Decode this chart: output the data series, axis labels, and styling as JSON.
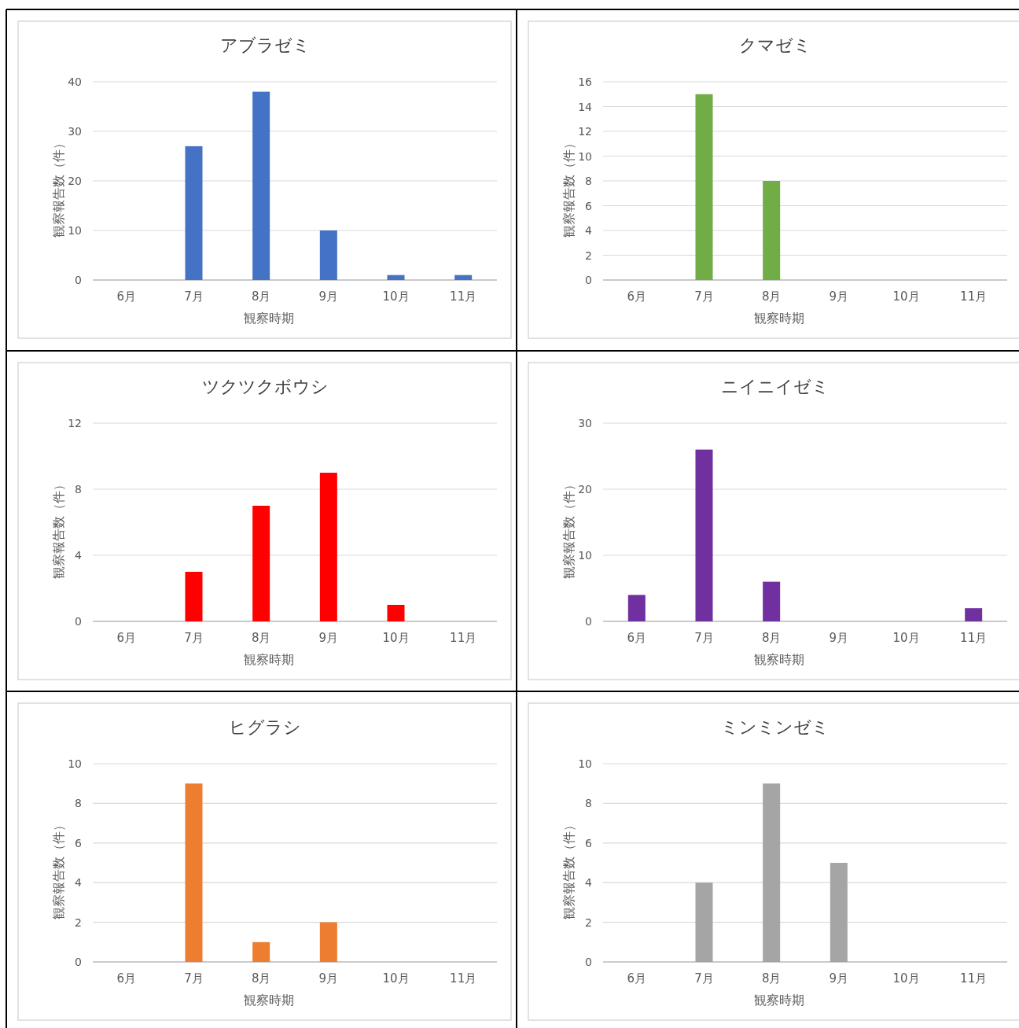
{
  "chart_data": [
    {
      "type": "bar",
      "title": "アブラゼミ",
      "xlabel": "観察時期",
      "ylabel": "観察報告数（件）",
      "categories": [
        "6月",
        "7月",
        "8月",
        "9月",
        "10月",
        "11月"
      ],
      "values": [
        0,
        27,
        38,
        10,
        1,
        1
      ],
      "color": "#4472c4",
      "ylim": [
        0,
        40
      ],
      "yticks": [
        0,
        10,
        20,
        30,
        40
      ],
      "grid": "y"
    },
    {
      "type": "bar",
      "title": "クマゼミ",
      "xlabel": "観察時期",
      "ylabel": "観察報告数（件）",
      "categories": [
        "6月",
        "7月",
        "8月",
        "9月",
        "10月",
        "11月"
      ],
      "values": [
        0,
        15,
        8,
        0,
        0,
        0
      ],
      "color": "#70ad47",
      "ylim": [
        0,
        16
      ],
      "yticks": [
        0,
        2,
        4,
        6,
        8,
        10,
        12,
        14,
        16
      ],
      "grid": "y"
    },
    {
      "type": "bar",
      "title": "ツクツクボウシ",
      "xlabel": "観察時期",
      "ylabel": "観察報告数（件）",
      "categories": [
        "6月",
        "7月",
        "8月",
        "9月",
        "10月",
        "11月"
      ],
      "values": [
        0,
        3,
        7,
        9,
        1,
        0
      ],
      "color": "#ff0000",
      "ylim": [
        0,
        12
      ],
      "yticks": [
        0,
        4,
        8,
        12
      ],
      "grid": "y"
    },
    {
      "type": "bar",
      "title": "ニイニイゼミ",
      "xlabel": "観察時期",
      "ylabel": "観察報告数（件）",
      "categories": [
        "6月",
        "7月",
        "8月",
        "9月",
        "10月",
        "11月"
      ],
      "values": [
        4,
        26,
        6,
        0,
        0,
        2
      ],
      "color": "#7030a0",
      "ylim": [
        0,
        30
      ],
      "yticks": [
        0,
        10,
        20,
        30
      ],
      "grid": "y"
    },
    {
      "type": "bar",
      "title": "ヒグラシ",
      "xlabel": "観察時期",
      "ylabel": "観察報告数（件）",
      "categories": [
        "6月",
        "7月",
        "8月",
        "9月",
        "10月",
        "11月"
      ],
      "values": [
        0,
        9,
        1,
        2,
        0,
        0
      ],
      "color": "#ed7d31",
      "ylim": [
        0,
        10
      ],
      "yticks": [
        0,
        2,
        4,
        6,
        8,
        10
      ],
      "grid": "y"
    },
    {
      "type": "bar",
      "title": "ミンミンゼミ",
      "xlabel": "観察時期",
      "ylabel": "観察報告数（件）",
      "categories": [
        "6月",
        "7月",
        "8月",
        "9月",
        "10月",
        "11月"
      ],
      "values": [
        0,
        4,
        9,
        5,
        0,
        0
      ],
      "color": "#a5a5a5",
      "ylim": [
        0,
        10
      ],
      "yticks": [
        0,
        2,
        4,
        6,
        8,
        10
      ],
      "grid": "y"
    }
  ]
}
